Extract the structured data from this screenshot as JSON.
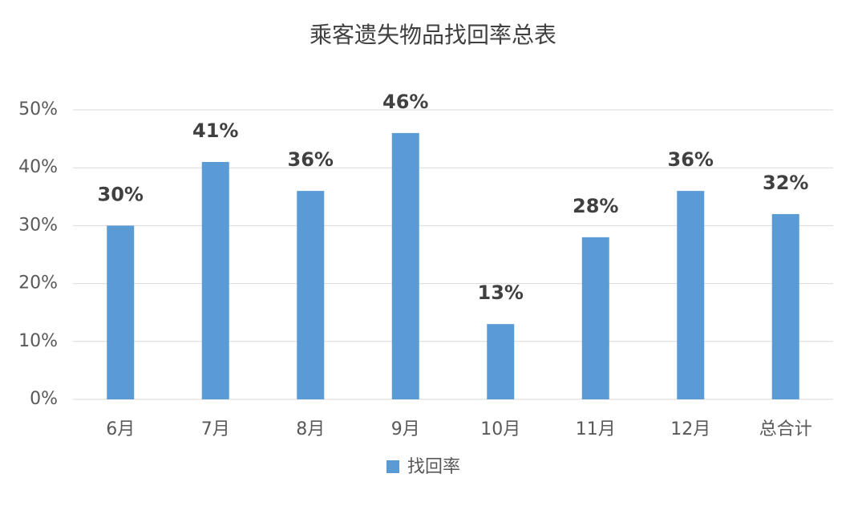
{
  "chart_data": {
    "type": "bar",
    "title": "乘客遗失物品找回率总表",
    "categories": [
      "6月",
      "7月",
      "8月",
      "9月",
      "10月",
      "11月",
      "12月",
      "总合计"
    ],
    "series": [
      {
        "name": "找回率",
        "color": "#5b9bd5",
        "values": [
          30,
          41,
          36,
          46,
          13,
          28,
          36,
          32
        ],
        "value_labels": [
          "30%",
          "41%",
          "36%",
          "46%",
          "13%",
          "28%",
          "36%",
          "32%"
        ]
      }
    ],
    "ylim": [
      0,
      50
    ],
    "yticks": [
      {
        "value": 0,
        "label": "0%"
      },
      {
        "value": 10,
        "label": "10%"
      },
      {
        "value": 20,
        "label": "20%"
      },
      {
        "value": 30,
        "label": "30%"
      },
      {
        "value": 40,
        "label": "40%"
      },
      {
        "value": 50,
        "label": "50%"
      }
    ],
    "grid": true,
    "legend": "bottom"
  }
}
